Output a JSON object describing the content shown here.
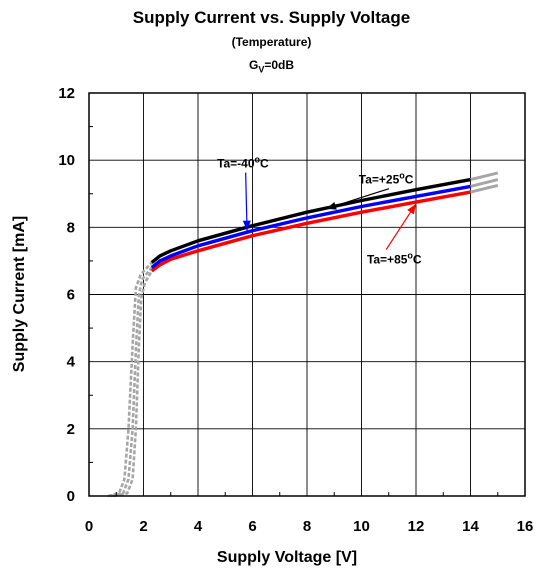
{
  "chart_data": {
    "type": "line",
    "title": "Supply Current vs. Supply Voltage",
    "subtitle": "(Temperature)",
    "condition": {
      "prefix": "G",
      "sub": "V",
      "suffix": "=0dB"
    },
    "xlabel": "Supply Voltage [V]",
    "ylabel": "Supply Current [mA]",
    "xlim": [
      0,
      16
    ],
    "ylim": [
      0,
      12
    ],
    "xticks": [
      0,
      2,
      4,
      6,
      8,
      10,
      12,
      14,
      16
    ],
    "yticks": [
      0,
      2,
      4,
      6,
      8,
      10,
      12
    ],
    "grid": true,
    "series": [
      {
        "name": "Ta=+25°C",
        "color": "#000000",
        "solid": [
          [
            2.3,
            6.95
          ],
          [
            2.6,
            7.15
          ],
          [
            3.0,
            7.3
          ],
          [
            4.0,
            7.6
          ],
          [
            6.0,
            8.05
          ],
          [
            8.0,
            8.45
          ],
          [
            10.0,
            8.8
          ],
          [
            12.0,
            9.12
          ],
          [
            14.0,
            9.42
          ]
        ],
        "dashed": [
          [
            0.7,
            0.0
          ],
          [
            1.1,
            0.08
          ],
          [
            1.3,
            0.5
          ],
          [
            1.45,
            2.0
          ],
          [
            1.6,
            4.5
          ],
          [
            1.72,
            6.2
          ],
          [
            1.9,
            6.6
          ],
          [
            2.3,
            6.95
          ]
        ],
        "tail": [
          [
            14.0,
            9.42
          ],
          [
            15.0,
            9.62
          ]
        ]
      },
      {
        "name": "Ta=-40°C",
        "color": "#0000ff",
        "solid": [
          [
            2.3,
            6.8
          ],
          [
            2.6,
            7.0
          ],
          [
            3.0,
            7.15
          ],
          [
            4.0,
            7.45
          ],
          [
            6.0,
            7.9
          ],
          [
            8.0,
            8.28
          ],
          [
            10.0,
            8.62
          ],
          [
            12.0,
            8.92
          ],
          [
            14.0,
            9.22
          ]
        ],
        "dashed": [
          [
            0.8,
            0.0
          ],
          [
            1.25,
            0.08
          ],
          [
            1.45,
            0.5
          ],
          [
            1.6,
            2.0
          ],
          [
            1.73,
            4.5
          ],
          [
            1.83,
            6.0
          ],
          [
            1.95,
            6.45
          ],
          [
            2.3,
            6.8
          ]
        ],
        "tail": [
          [
            14.0,
            9.22
          ],
          [
            15.0,
            9.42
          ]
        ]
      },
      {
        "name": "Ta=+85°C",
        "color": "#ff0000",
        "solid": [
          [
            2.3,
            6.7
          ],
          [
            2.6,
            6.88
          ],
          [
            3.0,
            7.05
          ],
          [
            4.0,
            7.3
          ],
          [
            6.0,
            7.75
          ],
          [
            8.0,
            8.12
          ],
          [
            10.0,
            8.45
          ],
          [
            12.0,
            8.75
          ],
          [
            14.0,
            9.05
          ]
        ],
        "dashed": [
          [
            0.9,
            0.0
          ],
          [
            1.4,
            0.08
          ],
          [
            1.6,
            0.5
          ],
          [
            1.72,
            2.0
          ],
          [
            1.83,
            4.5
          ],
          [
            1.92,
            5.9
          ],
          [
            2.05,
            6.35
          ],
          [
            2.3,
            6.7
          ]
        ],
        "tail": [
          [
            14.0,
            9.05
          ],
          [
            15.0,
            9.25
          ]
        ]
      }
    ],
    "annotations": [
      {
        "series": 0,
        "text": "Ta=+25",
        "unit": "C",
        "at": [
          9.9,
          9.3
        ],
        "arrow_to": [
          8.7,
          8.55
        ]
      },
      {
        "series": 1,
        "text": "Ta=-40",
        "unit": "C",
        "at": [
          4.7,
          9.78
        ],
        "arrow_to": [
          5.8,
          7.9
        ]
      },
      {
        "series": 2,
        "text": "Ta=+85",
        "unit": "C",
        "at": [
          10.2,
          6.92
        ],
        "arrow_to": [
          12.0,
          8.7
        ]
      }
    ],
    "tail_color": "#a6a6a6"
  }
}
